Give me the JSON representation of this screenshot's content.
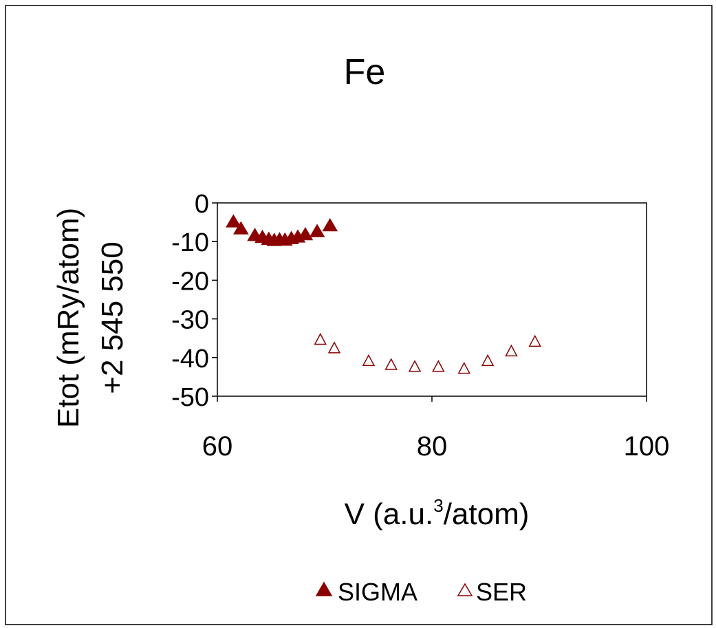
{
  "chart_data": {
    "type": "scatter",
    "title": "Fe",
    "ylabel_line1": "Etot  (mRy/atom)",
    "ylabel_line2": "+2 545 550",
    "xlabel_main": "V (a.u.",
    "xlabel_sup": "3",
    "xlabel_tail": "/atom)",
    "xlim": [
      60,
      100
    ],
    "ylim": [
      -50,
      0
    ],
    "x_ticks": [
      60,
      80,
      100
    ],
    "y_ticks": [
      0,
      -10,
      -20,
      -30,
      -40,
      -50
    ],
    "grid": false,
    "legend_position": "bottom-center",
    "series": [
      {
        "name": "SIGMA",
        "marker": "filled-triangle",
        "color": "#8B0000",
        "points": [
          [
            61.5,
            -5.0
          ],
          [
            62.2,
            -6.8
          ],
          [
            63.5,
            -8.5
          ],
          [
            64.2,
            -9.0
          ],
          [
            64.8,
            -9.5
          ],
          [
            65.3,
            -9.8
          ],
          [
            65.8,
            -9.6
          ],
          [
            66.3,
            -9.7
          ],
          [
            66.9,
            -9.3
          ],
          [
            67.5,
            -8.9
          ],
          [
            68.2,
            -8.3
          ],
          [
            69.3,
            -7.5
          ],
          [
            70.5,
            -6.0
          ]
        ]
      },
      {
        "name": "SER",
        "marker": "hollow-triangle",
        "color": "#8B0000",
        "points": [
          [
            69.6,
            -35.5
          ],
          [
            70.9,
            -37.7
          ],
          [
            74.1,
            -41.0
          ],
          [
            76.2,
            -42.0
          ],
          [
            78.4,
            -42.5
          ],
          [
            80.6,
            -42.5
          ],
          [
            83.0,
            -43.0
          ],
          [
            85.2,
            -41.0
          ],
          [
            87.4,
            -38.5
          ],
          [
            89.6,
            -36.0
          ]
        ]
      }
    ]
  }
}
